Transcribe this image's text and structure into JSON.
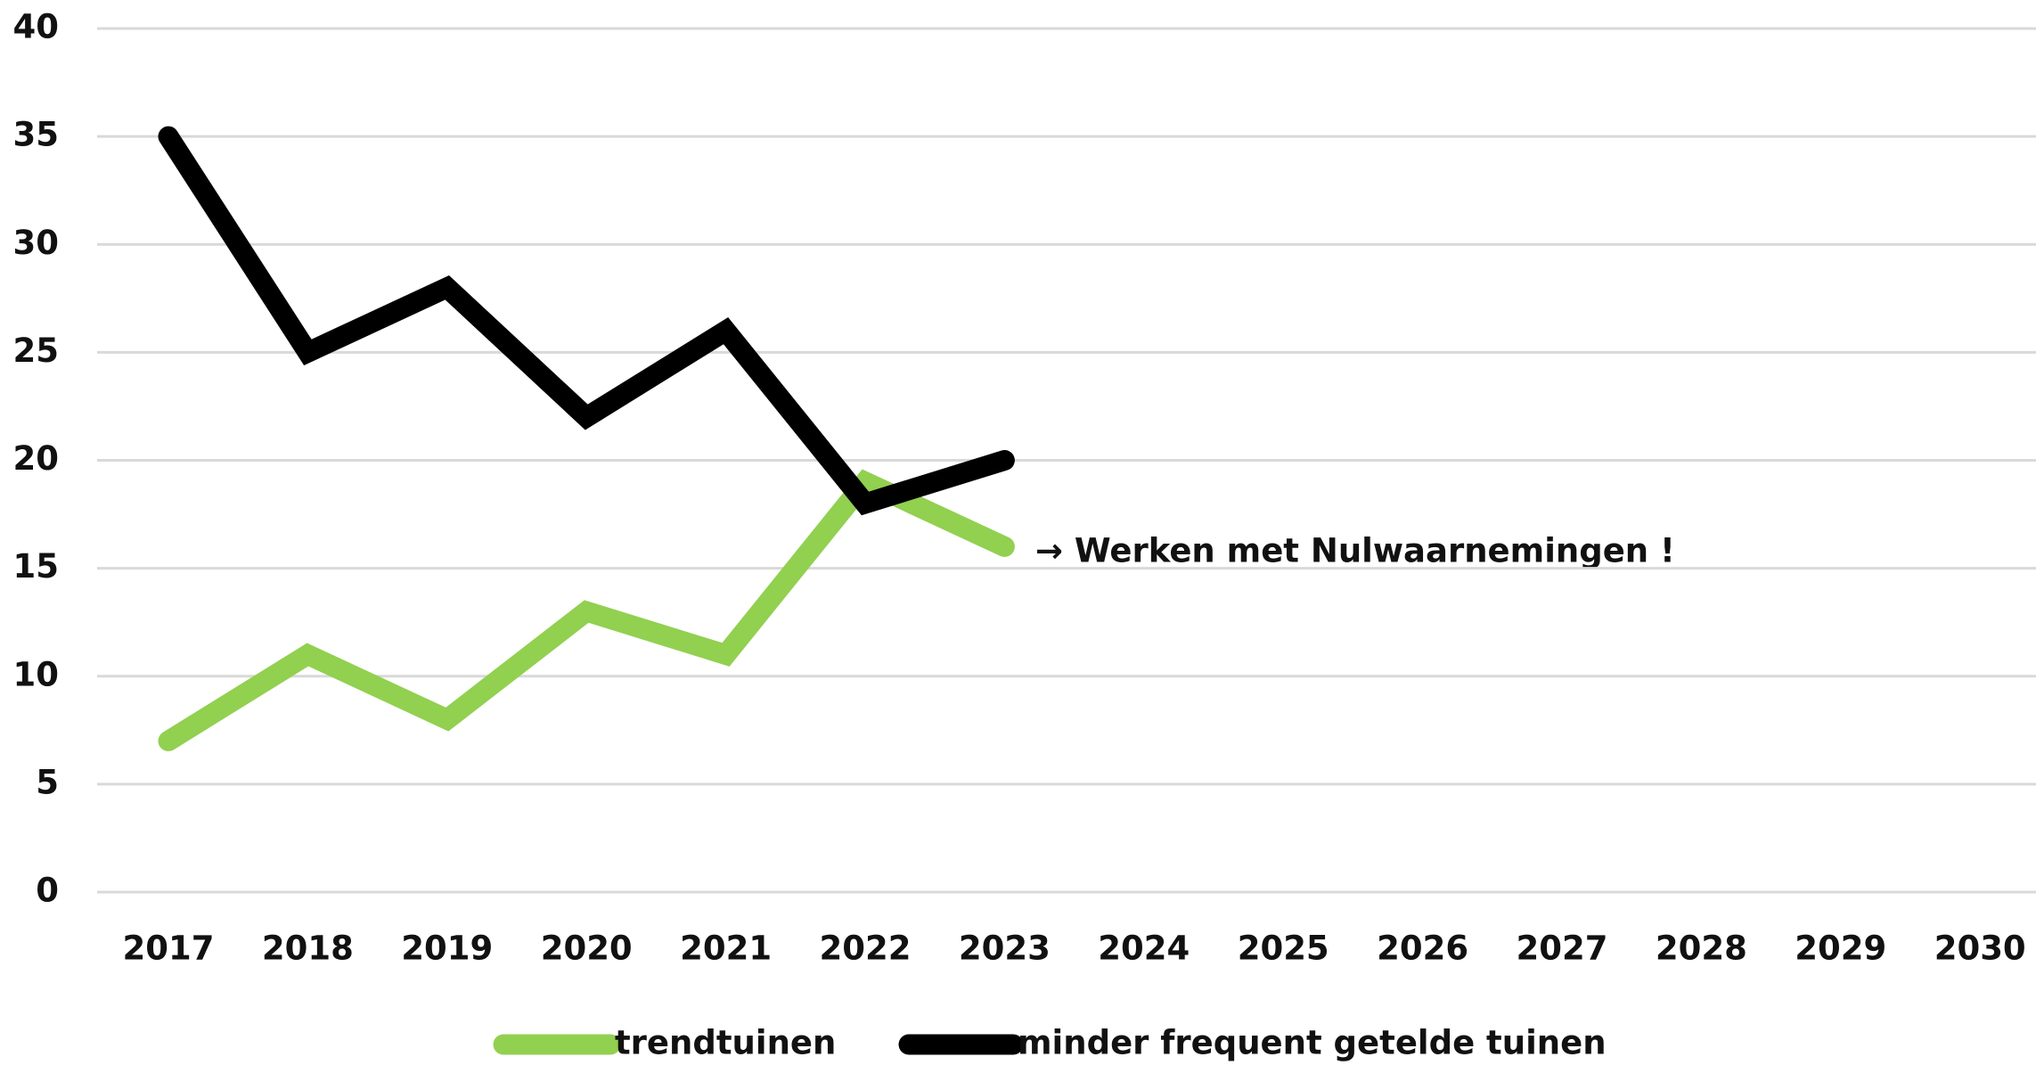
{
  "chart_data": {
    "type": "line",
    "categories": [
      "2017",
      "2018",
      "2019",
      "2020",
      "2021",
      "2022",
      "2023",
      "2024",
      "2025",
      "2026",
      "2027",
      "2028",
      "2029",
      "2030"
    ],
    "series": [
      {
        "name": "trendtuinen",
        "color": "#92d050",
        "values": [
          7,
          11,
          8,
          13,
          11,
          19,
          16,
          null,
          null,
          null,
          null,
          null,
          null,
          null
        ]
      },
      {
        "name": "minder frequent getelde tuinen",
        "color": "#000000",
        "values": [
          35,
          25,
          28,
          22,
          26,
          18,
          20,
          null,
          null,
          null,
          null,
          null,
          null,
          null
        ]
      }
    ],
    "ylim": [
      0,
      40
    ],
    "yticks": [
      0,
      5,
      10,
      15,
      20,
      25,
      30,
      35,
      40
    ],
    "grid": true,
    "annotation": {
      "text": "→ Werken met Nulwaarnemingen !",
      "color": "#ff0000"
    }
  }
}
